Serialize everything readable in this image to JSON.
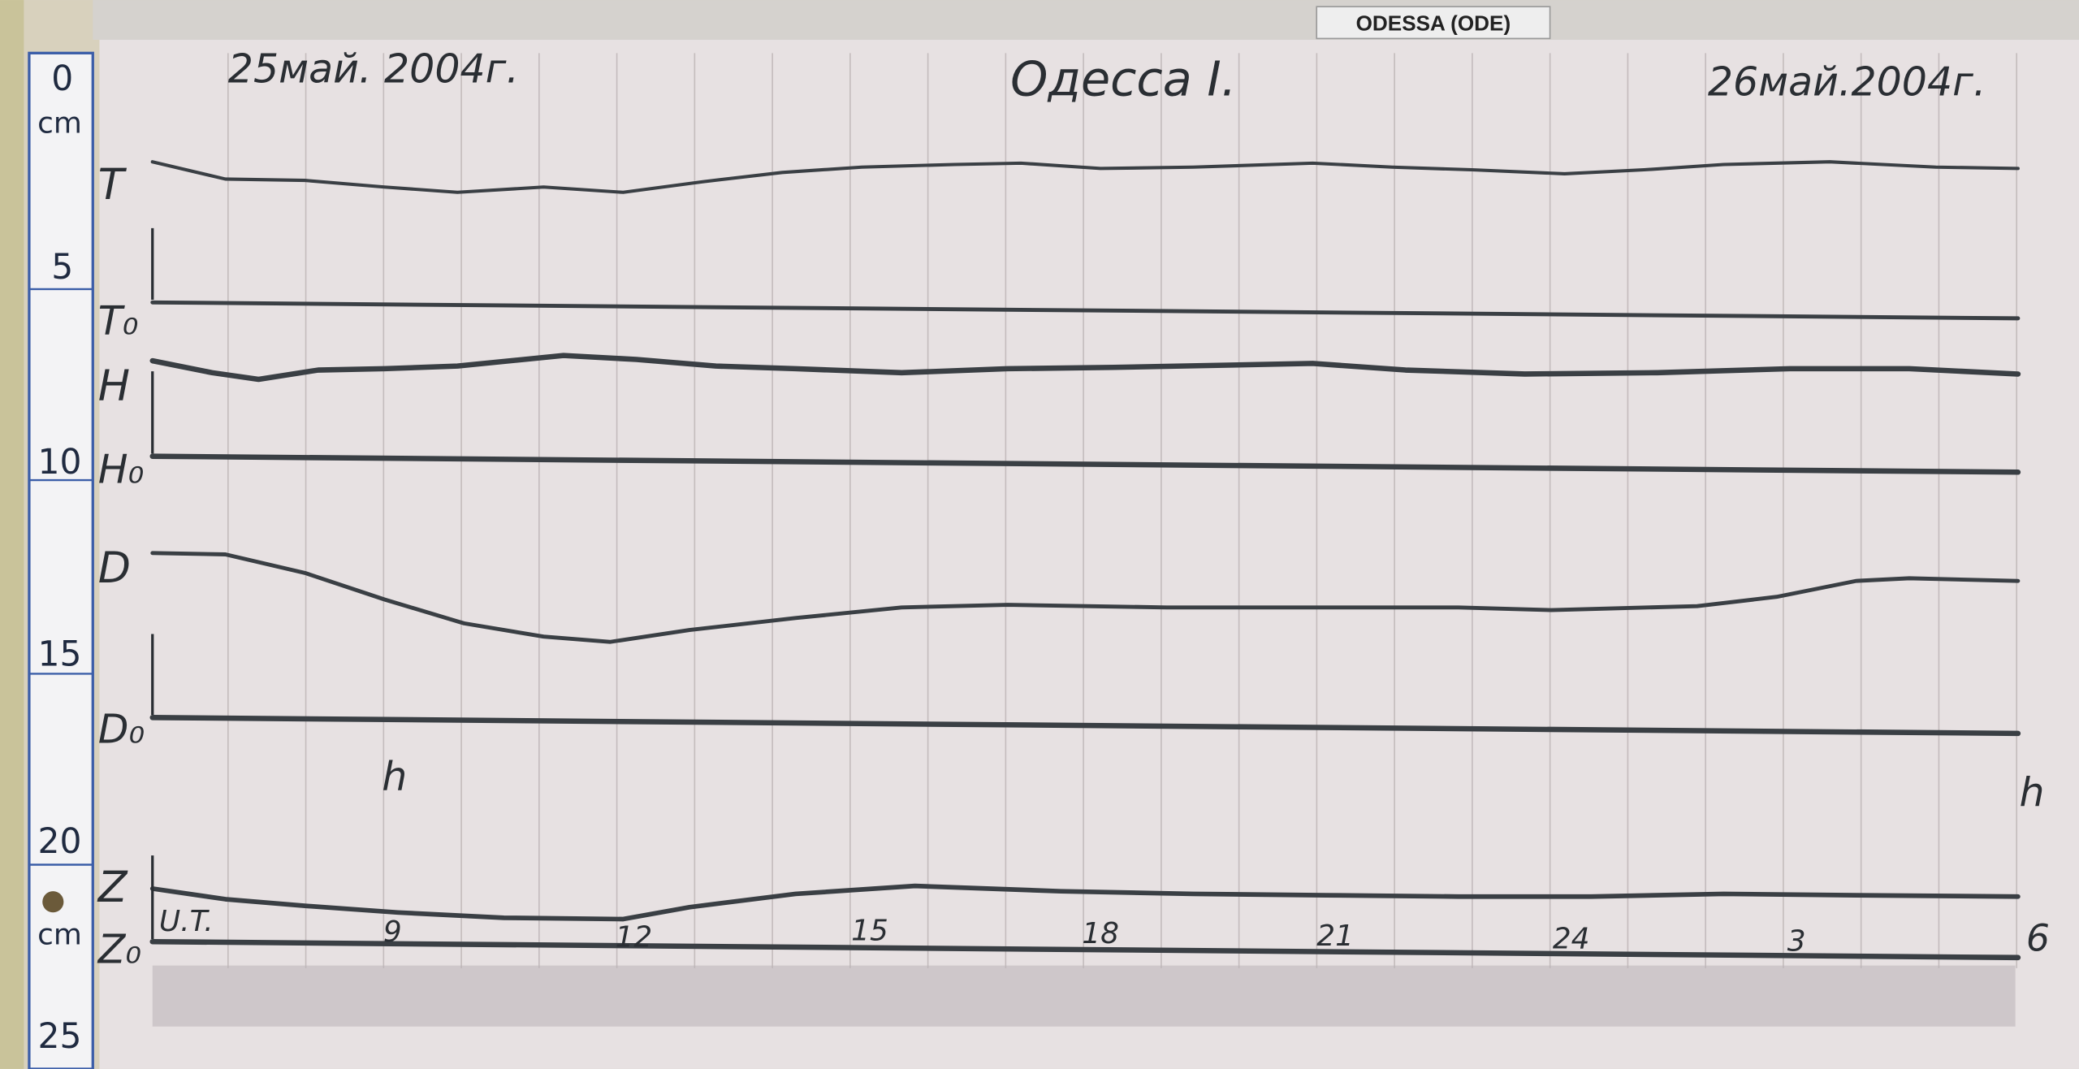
{
  "header": {
    "station_tag": "ODESSA (ODE)",
    "date_start": "25май. 2004г.",
    "station": "Одесса I.",
    "date_end": "26май.2004г."
  },
  "ruler": [
    "0",
    "cm",
    "5",
    "10",
    "15",
    "20",
    "cm",
    "25"
  ],
  "traces": [
    {
      "label": "T",
      "baseline": "T₀"
    },
    {
      "label": "H",
      "baseline": "H₀"
    },
    {
      "label": "D",
      "baseline": "D₀"
    },
    {
      "label": "Z",
      "baseline": "Z₀"
    }
  ],
  "hour_marks": [
    "h",
    "h"
  ],
  "time_axis": {
    "label": "U.T.",
    "ticks": [
      "9",
      "12",
      "15",
      "18",
      "21",
      "24",
      "3",
      "6"
    ]
  }
}
